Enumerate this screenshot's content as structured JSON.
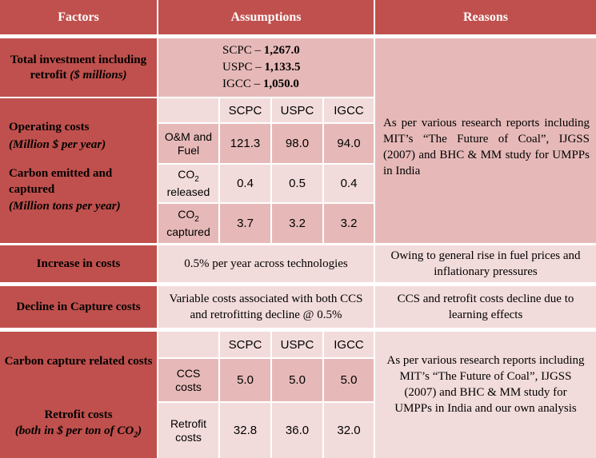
{
  "header": {
    "factors": "Factors",
    "assumptions": "Assumptions",
    "reasons": "Reasons"
  },
  "investment": {
    "label": "Total investment including retrofit",
    "unit": "($ millions)",
    "lines": [
      {
        "tech": "SCPC",
        "sep": " – ",
        "value": "1,267.0"
      },
      {
        "tech": "USPC",
        "sep": " – ",
        "value": "1,133.5"
      },
      {
        "tech": "IGCC",
        "sep": " – ",
        "value": "1,050.0"
      }
    ]
  },
  "operating": {
    "label": "Operating costs",
    "unit": "(Million $ per year)",
    "columns": [
      "SCPC",
      "USPC",
      "IGCC"
    ],
    "rows": [
      {
        "label": "O&M and Fuel",
        "values": [
          "121.3",
          "98.0",
          "94.0"
        ]
      }
    ]
  },
  "carbon": {
    "label": "Carbon emitted and captured",
    "unit": "(Million tons per year)",
    "rows": [
      {
        "label_pre": "CO",
        "label_sub": "2",
        "label_post": "released",
        "values": [
          "0.4",
          "0.5",
          "0.4"
        ]
      },
      {
        "label_pre": "CO",
        "label_sub": "2",
        "label_post": "captured",
        "values": [
          "3.7",
          "3.2",
          "3.2"
        ]
      }
    ]
  },
  "reason1": "As per various research reports including MIT’s “The Future of Coal”, IJGSS (2007) and BHC & MM study for UMPPs in India",
  "increase": {
    "label": "Increase in costs",
    "assumption": "0.5% per year across technologies",
    "reason": "Owing to general rise in fuel prices and inflationary pressures"
  },
  "decline": {
    "label": "Decline in Capture costs",
    "assumption": "Variable costs associated with both CCS and retrofitting decline @ 0.5%",
    "reason": "CCS and retrofit costs decline due to learning effects"
  },
  "capture": {
    "label": "Carbon capture related costs",
    "columns": [
      "SCPC",
      "USPC",
      "IGCC"
    ],
    "rows": [
      {
        "label": "CCS costs",
        "values": [
          "5.0",
          "5.0",
          "5.0"
        ]
      }
    ]
  },
  "retrofit": {
    "label": "Retrofit costs",
    "unit_pre": "(both in $ per ton of CO",
    "unit_sub": "2",
    "unit_post": ")",
    "rows": [
      {
        "label": "Retrofit costs",
        "values": [
          "32.8",
          "36.0",
          "32.0"
        ]
      }
    ]
  },
  "reason2": "As per various research reports including MIT’s “The Future of Coal”, IJGSS (2007) and BHC & MM study for UMPPs in India and our own analysis",
  "colors": {
    "header": "#c0504d",
    "mid": "#e6b9b8",
    "light": "#f2dcdb"
  }
}
